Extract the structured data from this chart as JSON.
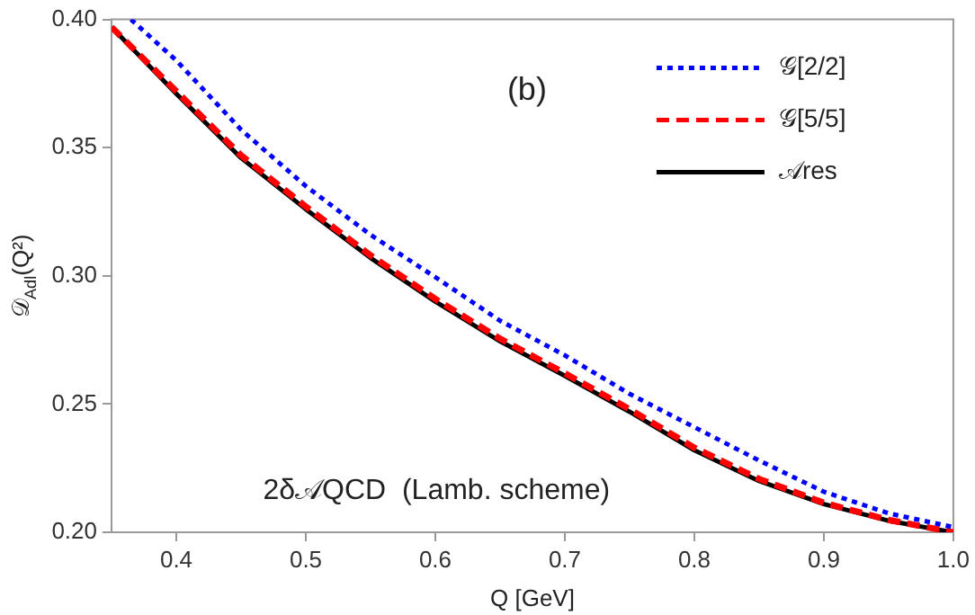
{
  "chart_data": {
    "type": "line",
    "xlabel": "Q [GeV]",
    "ylabel": "𝒟$_{Adl}$(Q²)",
    "annotations": [
      "(b)",
      "2δ𝒜QCD  (Lamb. scheme)"
    ],
    "xlim": [
      0.35,
      1.0
    ],
    "xticks": [
      0.4,
      0.5,
      0.6,
      0.7,
      0.8,
      0.9,
      {
        "value": 1.0,
        "label": "1.0"
      }
    ],
    "ylim": [
      0.2,
      0.4
    ],
    "yticks": [
      {
        "value": 0.2,
        "label": "0.20"
      },
      0.25,
      {
        "value": 0.3,
        "label": "0.30"
      },
      0.35,
      {
        "value": 0.4,
        "label": "0.40"
      }
    ],
    "grid": false,
    "legend": "top right",
    "marker": "none",
    "series": [
      {
        "name": "𝒢[2/2]",
        "color": "#0000ff",
        "line_style": "dotted",
        "x": [
          0.365,
          0.4,
          0.45,
          0.5,
          0.55,
          0.6,
          0.65,
          0.7,
          0.75,
          0.8,
          0.85,
          0.9,
          0.95,
          1.0
        ],
        "values": [
          0.4,
          0.384,
          0.357,
          0.335,
          0.316,
          0.2995,
          0.2825,
          0.269,
          0.254,
          0.241,
          0.228,
          0.2158,
          0.2074,
          0.202
        ]
      },
      {
        "name": "𝒢[5/5]",
        "color": "#ff0000",
        "line_style": "dashed",
        "x": [
          0.35,
          0.4,
          0.45,
          0.5,
          0.55,
          0.6,
          0.65,
          0.7,
          0.75,
          0.8,
          0.85,
          0.9,
          0.95,
          1.0
        ],
        "values": [
          0.397,
          0.372,
          0.347,
          0.327,
          0.308,
          0.291,
          0.2755,
          0.262,
          0.248,
          0.233,
          0.2208,
          0.2115,
          0.2048,
          0.2
        ]
      },
      {
        "name": "𝒜res",
        "color": "#000000",
        "line_style": "solid",
        "x": [
          0.35,
          0.4,
          0.45,
          0.5,
          0.55,
          0.6,
          0.65,
          0.7,
          0.75,
          0.8,
          0.85,
          0.9,
          0.95,
          1.0
        ],
        "values": [
          0.397,
          0.371,
          0.346,
          0.326,
          0.307,
          0.29,
          0.2745,
          0.261,
          0.247,
          0.232,
          0.22,
          0.211,
          0.2045,
          0.2
        ]
      }
    ]
  }
}
